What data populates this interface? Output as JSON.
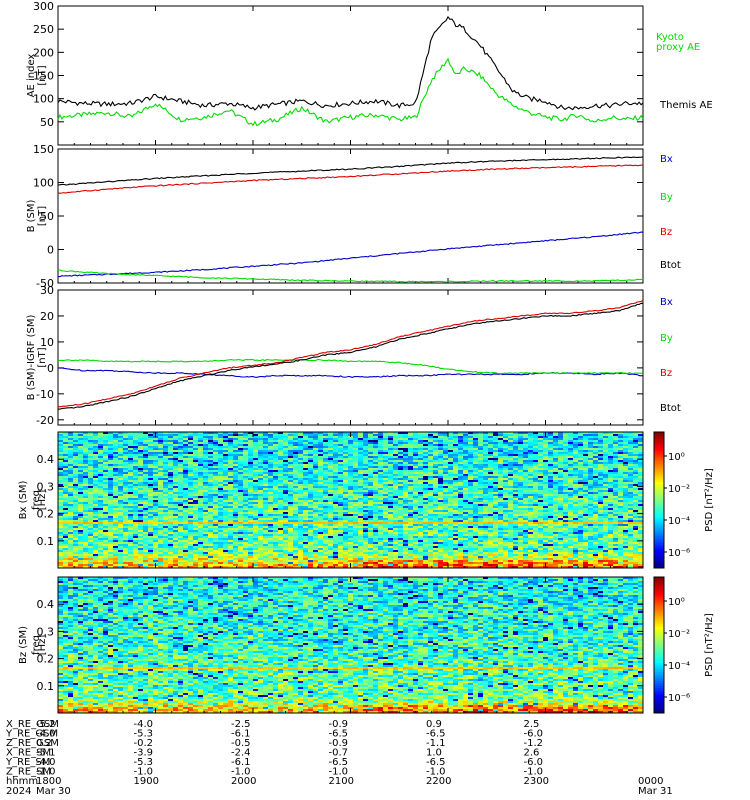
{
  "chart_data": [
    {
      "type": "line",
      "panel": "ae",
      "ylabel": "AE index",
      "yunit": "[nT]",
      "ylim": [
        0,
        300
      ],
      "yticks": [
        50,
        100,
        150,
        200,
        250,
        300
      ],
      "x": [
        18.0,
        18.25,
        18.5,
        18.75,
        19.0,
        19.25,
        19.5,
        19.75,
        20.0,
        20.25,
        20.5,
        20.75,
        21.0,
        21.25,
        21.5,
        21.67,
        21.83,
        22.0,
        22.08,
        22.17,
        22.33,
        22.5,
        22.67,
        22.83,
        23.0,
        23.17,
        23.33,
        23.5,
        23.67,
        23.83,
        24.0
      ],
      "series": [
        {
          "name": "Kyoto proxy AE",
          "color": "#00dd00",
          "values": [
            60,
            65,
            70,
            60,
            90,
            55,
            60,
            75,
            45,
            55,
            80,
            50,
            60,
            65,
            55,
            60,
            140,
            185,
            150,
            165,
            150,
            110,
            85,
            70,
            60,
            55,
            65,
            50,
            60,
            55,
            60
          ]
        },
        {
          "name": "Themis AE",
          "color": "#000000",
          "values": [
            95,
            90,
            88,
            90,
            105,
            95,
            85,
            90,
            80,
            88,
            95,
            85,
            90,
            95,
            85,
            90,
            230,
            275,
            260,
            250,
            215,
            165,
            115,
            100,
            95,
            80,
            80,
            85,
            85,
            90,
            90
          ]
        }
      ]
    },
    {
      "type": "line",
      "panel": "b_sm",
      "ylabel": "B (SM)",
      "yunit": "[nT]",
      "ylim": [
        -50,
        150
      ],
      "yticks": [
        -50,
        0,
        50,
        100,
        150
      ],
      "x": [
        18.0,
        18.5,
        19.0,
        19.5,
        20.0,
        20.5,
        21.0,
        21.5,
        22.0,
        22.5,
        23.0,
        23.5,
        24.0
      ],
      "series": [
        {
          "name": "Bx",
          "color": "#0000cc",
          "values": [
            -40,
            -37,
            -34,
            -30,
            -25,
            -20,
            -13,
            -6,
            1,
            7,
            13,
            19,
            26
          ]
        },
        {
          "name": "By",
          "color": "#00dd00",
          "values": [
            -31,
            -36,
            -39,
            -42,
            -44,
            -46,
            -47,
            -48,
            -48,
            -47,
            -47,
            -47,
            -45
          ]
        },
        {
          "name": "Bz",
          "color": "#dd0000",
          "values": [
            84,
            90,
            95,
            99,
            103,
            106,
            109,
            113,
            117,
            120,
            122,
            124,
            126
          ]
        },
        {
          "name": "Btot",
          "color": "#000000",
          "values": [
            96,
            101,
            106,
            110,
            114,
            117,
            120,
            124,
            129,
            132,
            134,
            136,
            138
          ]
        }
      ]
    },
    {
      "type": "line",
      "panel": "b_igrf",
      "ylabel": "B (SM)-IGRF (SM)",
      "yunit": "[nT]",
      "ylim": [
        -22,
        30
      ],
      "yticks": [
        -20,
        -10,
        0,
        10,
        20,
        30
      ],
      "x": [
        18.0,
        18.25,
        18.5,
        18.75,
        19.0,
        19.25,
        19.5,
        19.75,
        20.0,
        20.25,
        20.5,
        20.75,
        21.0,
        21.25,
        21.5,
        21.75,
        22.0,
        22.25,
        22.5,
        22.75,
        23.0,
        23.25,
        23.5,
        23.75,
        24.0
      ],
      "series": [
        {
          "name": "Bx",
          "color": "#0000cc",
          "values": [
            0,
            -1,
            -1,
            -1.5,
            -2,
            -2,
            -2.5,
            -3,
            -3.5,
            -3,
            -3,
            -3,
            -3.5,
            -3.5,
            -3,
            -3,
            -2.5,
            -2.5,
            -2.5,
            -2.5,
            -2,
            -2,
            -2.5,
            -2,
            -3
          ]
        },
        {
          "name": "By",
          "color": "#00dd00",
          "values": [
            3,
            3,
            2.5,
            2.5,
            2.5,
            2.5,
            2.5,
            3,
            3,
            3,
            3,
            3,
            2.5,
            2.5,
            2,
            1,
            -0.5,
            -1.5,
            -2,
            -2,
            -2,
            -2,
            -2,
            -2,
            -2
          ]
        },
        {
          "name": "Bz",
          "color": "#dd0000",
          "values": [
            -15,
            -14,
            -12,
            -10,
            -7,
            -4,
            -2,
            0,
            1,
            2,
            4,
            6,
            7,
            9,
            12,
            14,
            16,
            18,
            19,
            20,
            21,
            21,
            22,
            23,
            26
          ]
        },
        {
          "name": "Btot",
          "color": "#000000",
          "values": [
            -16,
            -15,
            -13,
            -11,
            -8,
            -5,
            -3,
            -1,
            0.5,
            1.5,
            3,
            5,
            6,
            8,
            11,
            13,
            15,
            17,
            18,
            19,
            20,
            20,
            21,
            22,
            25
          ]
        }
      ]
    },
    {
      "type": "heatmap",
      "panel": "bx_spec",
      "ylabel": "Bx (SM)",
      "ylabel2": "freq",
      "yunit": "[Hz]",
      "ylim": [
        0,
        0.5
      ],
      "yticks": [
        0.1,
        0.2,
        0.3,
        0.4
      ],
      "colorbar_label": "PSD [nT²/Hz]",
      "colorbar_ticks": [
        "10⁰",
        "10⁻²",
        "10⁻⁴",
        "10⁻⁶"
      ],
      "colorbar_exponents": [
        0,
        -2,
        -4,
        -6
      ],
      "colorbar_range": [
        -7,
        1.5
      ],
      "note_line_hz": 0.167
    },
    {
      "type": "heatmap",
      "panel": "bz_spec",
      "ylabel": "Bz (SM)",
      "ylabel2": "freq",
      "yunit": "[Hz]",
      "ylim": [
        0,
        0.5
      ],
      "yticks": [
        0.1,
        0.2,
        0.3,
        0.4
      ],
      "colorbar_label": "PSD [nT²/Hz]",
      "colorbar_ticks": [
        "10⁰",
        "10⁻²",
        "10⁻⁴",
        "10⁻⁶"
      ],
      "colorbar_exponents": [
        0,
        -2,
        -4,
        -6
      ],
      "colorbar_range": [
        -7,
        1.5
      ],
      "note_line_hz": 0.167
    }
  ],
  "xaxis": {
    "ticks": [
      "1800",
      "1900",
      "2000",
      "2100",
      "2200",
      "2300",
      "0000"
    ],
    "tick_hours": [
      18,
      19,
      20,
      21,
      22,
      23,
      24
    ],
    "dates": [
      "Mar 30",
      "Mar 31"
    ]
  },
  "ephemeris": {
    "rows": [
      {
        "label": "X_RE_GSM",
        "values": [
          "-5.2",
          "-4.0",
          "-2.5",
          "-0.9",
          "0.9",
          "2.5"
        ]
      },
      {
        "label": "Y_RE_GSM",
        "values": [
          "-4.0",
          "-5.3",
          "-6.1",
          "-6.5",
          "-6.5",
          "-6.0"
        ]
      },
      {
        "label": "Z_RE_GSM",
        "values": [
          "0.2",
          "-0.2",
          "-0.5",
          "-0.9",
          "-1.1",
          "-1.2"
        ]
      },
      {
        "label": "X_RE_SM",
        "values": [
          "-5.1",
          "-3.9",
          "-2.4",
          "-0.7",
          "1.0",
          "2.6"
        ]
      },
      {
        "label": "Y_RE_SM",
        "values": [
          "-4.0",
          "-5.3",
          "-6.1",
          "-6.5",
          "-6.5",
          "-6.0"
        ]
      },
      {
        "label": "Z_RE_SM",
        "values": [
          "-1.0",
          "-1.0",
          "-1.0",
          "-1.0",
          "-1.0",
          "-1.0"
        ]
      }
    ],
    "time_label": "hhmm",
    "year": "2024"
  }
}
